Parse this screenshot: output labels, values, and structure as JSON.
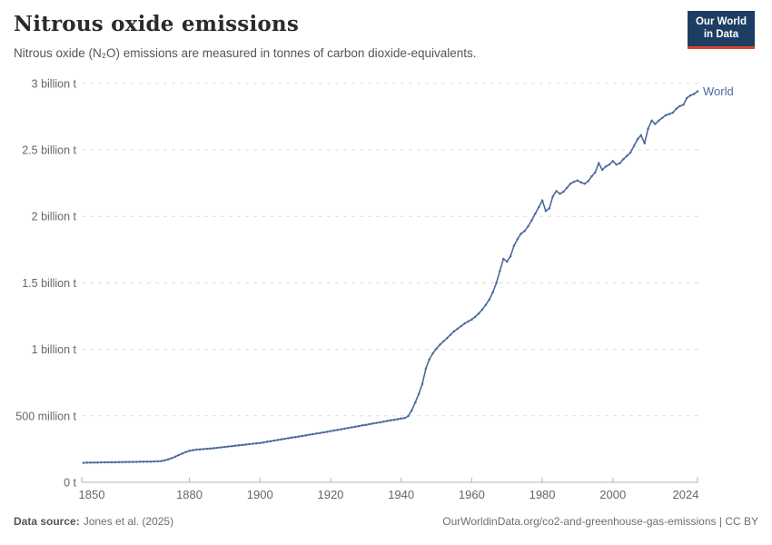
{
  "header": {
    "title": "Nitrous oxide emissions",
    "subtitle": "Nitrous oxide (N₂O) emissions are measured in tonnes of carbon dioxide-equivalents.",
    "logo": {
      "line1": "Our World",
      "line2": "in Data",
      "bg_color": "#1d3d63",
      "accent_color": "#e0432c"
    }
  },
  "chart_data": {
    "type": "line",
    "title": "Nitrous oxide emissions",
    "xlabel": "",
    "ylabel": "",
    "xlim": [
      1850,
      2024
    ],
    "ylim": [
      0,
      3000
    ],
    "unit": "million tonnes of CO2-equivalents",
    "grid": "dashed-horizontal",
    "legend_position": "end-of-line",
    "x_ticks": [
      1850,
      1880,
      1900,
      1920,
      1940,
      1960,
      1980,
      2000,
      2024
    ],
    "y_ticks": [
      {
        "value": 0,
        "label": "0 t"
      },
      {
        "value": 500,
        "label": "500 million t"
      },
      {
        "value": 1000,
        "label": "1 billion t"
      },
      {
        "value": 1500,
        "label": "1.5 billion t"
      },
      {
        "value": 2000,
        "label": "2 billion t"
      },
      {
        "value": 2500,
        "label": "2.5 billion t"
      },
      {
        "value": 3000,
        "label": "3 billion t"
      }
    ],
    "series": [
      {
        "name": "World",
        "color": "#4c6a9c",
        "x_start_year": 1850,
        "x_step": 1,
        "values": [
          147,
          148,
          148,
          149,
          149,
          150,
          150,
          151,
          151,
          151,
          152,
          152,
          153,
          153,
          154,
          154,
          155,
          155,
          156,
          156,
          157,
          158,
          160,
          165,
          172,
          182,
          193,
          205,
          217,
          228,
          237,
          242,
          246,
          248,
          250,
          252,
          254,
          257,
          260,
          263,
          266,
          269,
          272,
          275,
          278,
          281,
          284,
          287,
          290,
          293,
          296,
          300,
          305,
          309,
          314,
          318,
          323,
          327,
          332,
          336,
          340,
          344,
          349,
          353,
          358,
          362,
          367,
          371,
          376,
          380,
          385,
          390,
          394,
          399,
          404,
          409,
          413,
          418,
          423,
          428,
          432,
          437,
          442,
          447,
          451,
          456,
          461,
          466,
          470,
          475,
          480,
          483,
          498,
          540,
          600,
          665,
          740,
          855,
          925,
          970,
          1005,
          1035,
          1060,
          1085,
          1110,
          1135,
          1155,
          1175,
          1195,
          1210,
          1225,
          1245,
          1270,
          1300,
          1335,
          1375,
          1430,
          1500,
          1590,
          1680,
          1660,
          1700,
          1780,
          1830,
          1870,
          1890,
          1925,
          1970,
          2020,
          2070,
          2120,
          2040,
          2060,
          2150,
          2190,
          2170,
          2185,
          2215,
          2245,
          2260,
          2270,
          2255,
          2245,
          2265,
          2300,
          2330,
          2400,
          2350,
          2375,
          2390,
          2415,
          2390,
          2400,
          2430,
          2455,
          2480,
          2530,
          2580,
          2610,
          2550,
          2660,
          2720,
          2695,
          2720,
          2740,
          2760,
          2770,
          2780,
          2810,
          2830,
          2840,
          2890,
          2910,
          2920,
          2940
        ]
      }
    ],
    "style": {
      "grid_color": "#dcdcdc",
      "axis_color": "#b3b3b3",
      "tick_label_color": "#666666",
      "marker_radius": 1.25,
      "line_width": 1.6
    }
  },
  "footer": {
    "source_label": "Data source:",
    "source_value": "Jones et al. (2025)",
    "url": "OurWorldinData.org/co2-and-greenhouse-gas-emissions",
    "separator": " | ",
    "license": "CC BY"
  }
}
